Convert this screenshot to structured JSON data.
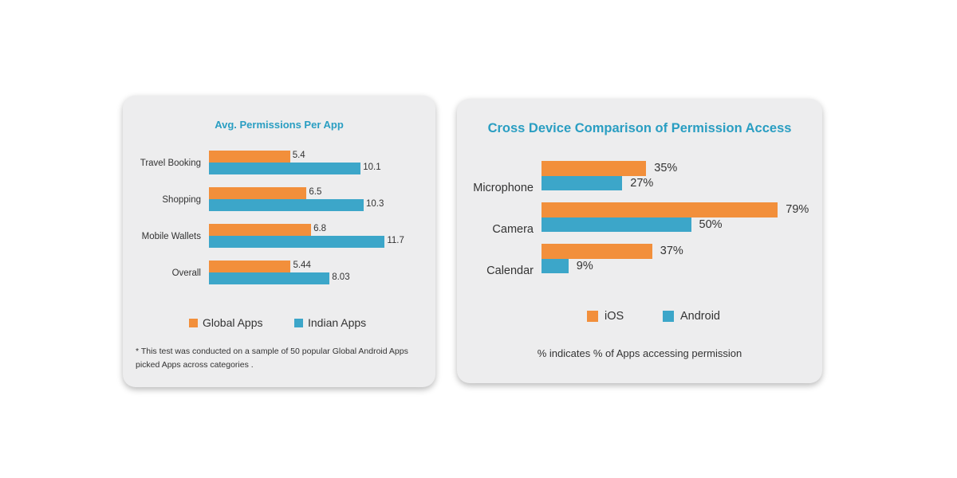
{
  "colors": {
    "ios_global": "#f28f3b",
    "android_indian": "#3ca6c9",
    "title": "#2a9ec2"
  },
  "chart_data": [
    {
      "type": "bar",
      "orientation": "horizontal",
      "title": "Avg. Permissions Per App",
      "categories": [
        "Travel Booking",
        "Shopping",
        "Mobile Wallets",
        "Overall"
      ],
      "series": [
        {
          "name": "Global Apps",
          "values": [
            5.4,
            6.5,
            6.8,
            5.44
          ],
          "labels": [
            "5.4",
            "6.5",
            "6.8",
            "5.44"
          ]
        },
        {
          "name": "Indian Apps",
          "values": [
            10.1,
            10.3,
            11.7,
            8.03
          ],
          "labels": [
            "10.1",
            "10.3",
            "11.7",
            "8.03"
          ]
        }
      ],
      "xlim": [
        0,
        12
      ],
      "footnote": "* This test was conducted on a sample of 50 popular Global Android Apps picked Apps across categories ."
    },
    {
      "type": "bar",
      "orientation": "horizontal",
      "title": "Cross Device Comparison of Permission Access",
      "categories": [
        "Microphone",
        "Camera",
        "Calendar"
      ],
      "series": [
        {
          "name": "iOS",
          "values": [
            35,
            79,
            37
          ],
          "labels": [
            "35%",
            "79%",
            "37%"
          ]
        },
        {
          "name": "Android",
          "values": [
            27,
            50,
            9
          ],
          "labels": [
            "27%",
            "50%",
            "9%"
          ]
        }
      ],
      "xlim": [
        0,
        100
      ],
      "note": "% indicates % of Apps accessing permission"
    }
  ]
}
